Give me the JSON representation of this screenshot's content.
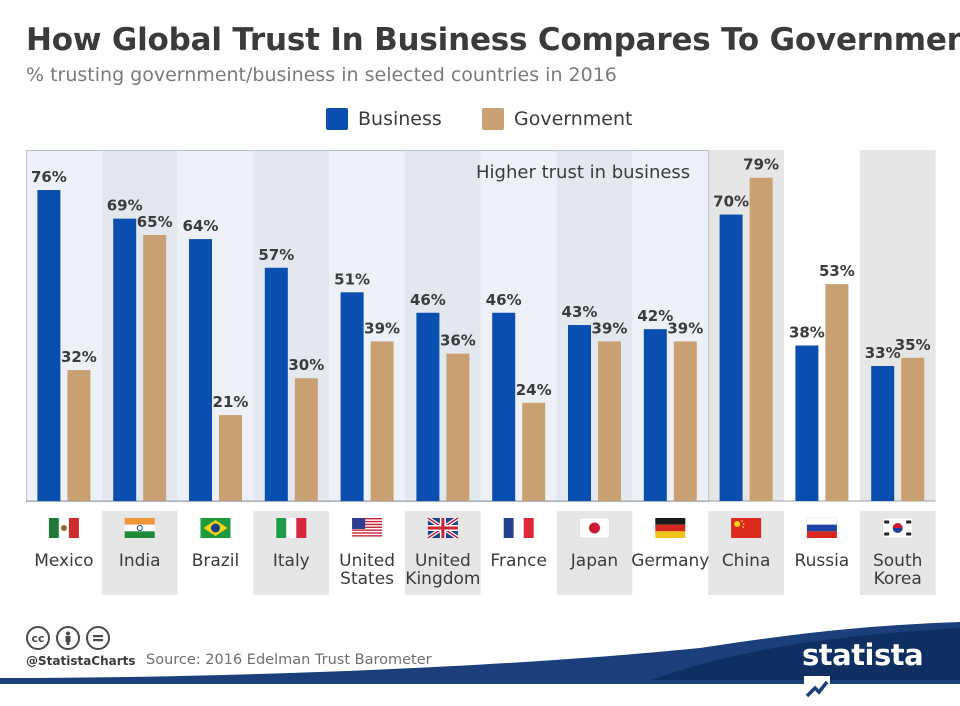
{
  "header": {
    "title": "How Global Trust In Business Compares To Government",
    "subtitle": "% trusting government/business in selected countries in 2016"
  },
  "legend": {
    "business_label": "Business",
    "government_label": "Government"
  },
  "colors": {
    "business": "#0a4fb0",
    "government": "#c9a071",
    "band_light": "#edf1f7",
    "band_dark": "#e6e6e6",
    "text": "#3b3b3b"
  },
  "annotation": {
    "text": "Higher trust in business"
  },
  "chart_data": {
    "type": "bar",
    "categories": [
      "Mexico",
      "India",
      "Brazil",
      "Italy",
      "United States",
      "United Kingdom",
      "France",
      "Japan",
      "Germany",
      "China",
      "Russia",
      "South Korea"
    ],
    "category_labels": [
      [
        "Mexico"
      ],
      [
        "India"
      ],
      [
        "Brazil"
      ],
      [
        "Italy"
      ],
      [
        "United",
        "States"
      ],
      [
        "United",
        "Kingdom"
      ],
      [
        "France"
      ],
      [
        "Japan"
      ],
      [
        "Germany"
      ],
      [
        "China"
      ],
      [
        "Russia"
      ],
      [
        "South",
        "Korea"
      ]
    ],
    "flags": [
      "mexico-flag-icon",
      "india-flag-icon",
      "brazil-flag-icon",
      "italy-flag-icon",
      "usa-flag-icon",
      "uk-flag-icon",
      "france-flag-icon",
      "japan-flag-icon",
      "germany-flag-icon",
      "china-flag-icon",
      "russia-flag-icon",
      "south-korea-flag-icon"
    ],
    "series": [
      {
        "name": "Business",
        "values": [
          76,
          69,
          64,
          57,
          51,
          46,
          46,
          43,
          42,
          70,
          38,
          33
        ]
      },
      {
        "name": "Government",
        "values": [
          32,
          65,
          21,
          30,
          39,
          36,
          24,
          39,
          39,
          79,
          53,
          35
        ]
      }
    ],
    "value_suffix": "%",
    "ylim": [
      0,
      86
    ],
    "higher_business_group": [
      "Mexico",
      "India",
      "Brazil",
      "Italy",
      "United States",
      "United Kingdom",
      "France",
      "Japan",
      "Germany"
    ]
  },
  "footer": {
    "handle": "@StatistaCharts",
    "source": "Source: 2016 Edelman Trust Barometer",
    "logo_text": "statista",
    "license_icons": [
      "creative-commons-icon",
      "attribution-icon",
      "no-derivatives-icon"
    ]
  }
}
